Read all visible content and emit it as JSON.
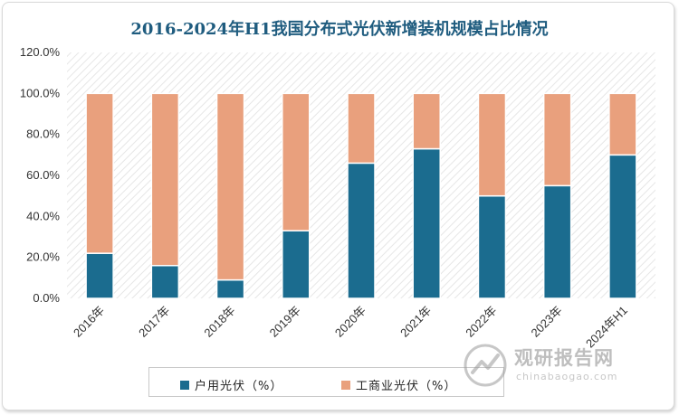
{
  "chart_data": {
    "type": "bar",
    "stacked": true,
    "title": "2016-2024年H1我国分布式光伏新增装机规模占比情况",
    "categories": [
      "2016年",
      "2017年",
      "2018年",
      "2019年",
      "2020年",
      "2021年",
      "2022年",
      "2023年",
      "2024年H1"
    ],
    "series": [
      {
        "name": "户用光伏（%）",
        "color": "#1b6c8f",
        "values": [
          22,
          16,
          9,
          33,
          66,
          73,
          50,
          55,
          70
        ]
      },
      {
        "name": "工商业光伏（%）",
        "color": "#e9a07d",
        "values": [
          78,
          84,
          91,
          67,
          34,
          27,
          50,
          45,
          30
        ]
      }
    ],
    "ylim": [
      0,
      120
    ],
    "yticks": [
      "0.0%",
      "20.0%",
      "40.0%",
      "60.0%",
      "80.0%",
      "100.0%",
      "120.0%"
    ],
    "legend_position": "bottom",
    "background_pattern": "diagonal-hatch"
  },
  "watermark": {
    "main": "观研报告网",
    "sub": "chinabaogao.com"
  }
}
